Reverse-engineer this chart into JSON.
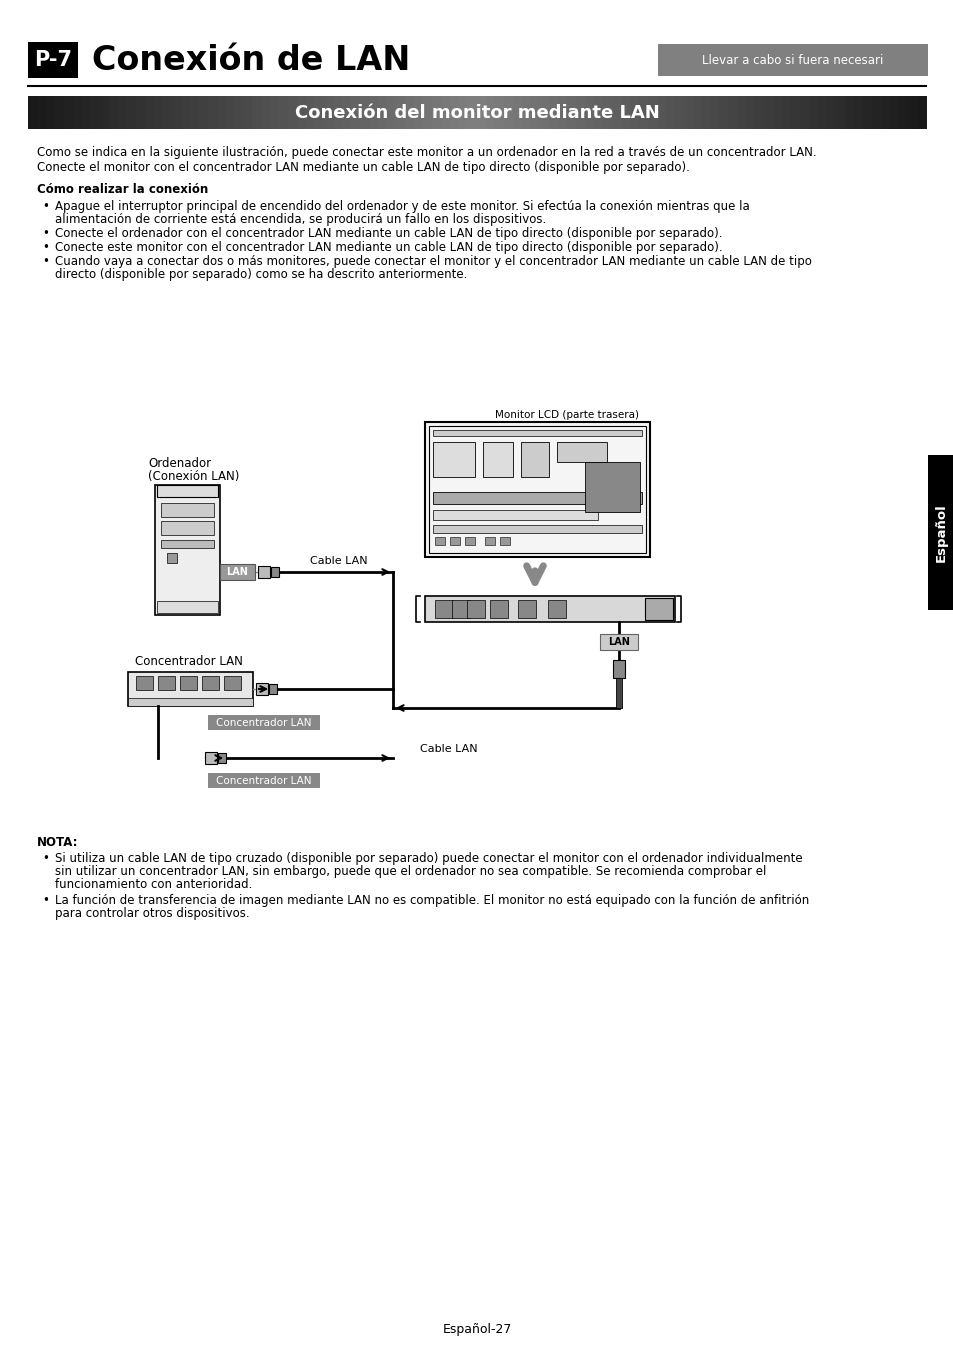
{
  "page_bg": "#ffffff",
  "title_text": "P-7",
  "title_main": "Conexión de LAN",
  "badge_bg": "#808080",
  "badge_text": "Llevar a cabo si fuera necesari",
  "section_title": "Conexión del monitor mediante LAN",
  "body_text_1": "Como se indica en la siguiente ilustración, puede conectar este monitor a un ordenador en la red a través de un concentrador LAN.",
  "body_text_2": "Conecte el monitor con el concentrador LAN mediante un cable LAN de tipo directo (disponible por separado).",
  "subtitle_bold": "Cómo realizar la conexión",
  "bullets": [
    "Apague el interruptor principal de encendido del ordenador y de este monitor. Si efectúa la conexión mientras que la\nalimentación de corriente está encendida, se producirá un fallo en los dispositivos.",
    "Conecte el ordenador con el concentrador LAN mediante un cable LAN de tipo directo (disponible por separado).",
    "Conecte este monitor con el concentrador LAN mediante un cable LAN de tipo directo (disponible por separado).",
    "Cuando vaya a conectar dos o más monitores, puede conectar el monitor y el concentrador LAN mediante un cable LAN de tipo\ndirecto (disponible por separado) como se ha descrito anteriormente."
  ],
  "note_title": "NOTA:",
  "note_bullets": [
    "Si utiliza un cable LAN de tipo cruzado (disponible por separado) puede conectar el monitor con el ordenador individualmente\nsin utilizar un concentrador LAN, sin embargo, puede que el ordenador no sea compatible. Se recomienda comprobar el\nfuncionamiento con anterioridad.",
    "La función de transferencia de imagen mediante LAN no es compatible. El monitor no está equipado con la función de anfitrión\npara controlar otros dispositivos."
  ],
  "footer_text": "Español-27",
  "espanol_tab_bg": "#000000",
  "espanol_tab_text": "Español"
}
